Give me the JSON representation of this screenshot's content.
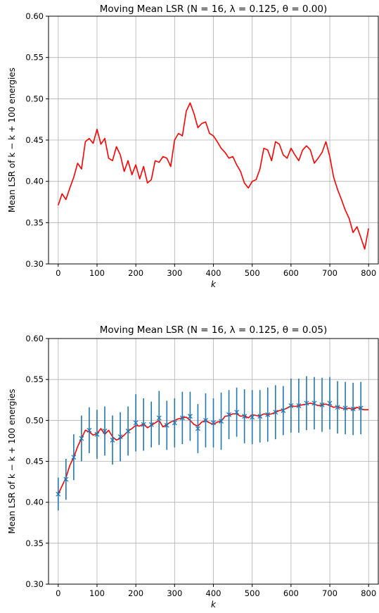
{
  "chart_data": [
    {
      "type": "line",
      "title": "Moving Mean LSR (N = 16, λ = 0.125, θ = 0.00)",
      "xlabel": "k",
      "ylabel": "Mean LSR of k − k + 100 energies",
      "xlim": [
        -25,
        825
      ],
      "ylim": [
        0.3,
        0.6
      ],
      "xticks": [
        0,
        100,
        200,
        300,
        400,
        500,
        600,
        700,
        800
      ],
      "yticks": [
        "0.30",
        "0.35",
        "0.40",
        "0.45",
        "0.50",
        "0.55",
        "0.60"
      ],
      "grid": true,
      "series": [
        {
          "color": "#ff0000",
          "x": [
            0,
            10,
            20,
            30,
            40,
            50,
            60,
            70,
            80,
            90,
            100,
            110,
            120,
            130,
            140,
            150,
            160,
            170,
            180,
            190,
            200,
            210,
            220,
            230,
            240,
            250,
            260,
            270,
            280,
            290,
            300,
            310,
            320,
            330,
            340,
            350,
            360,
            370,
            380,
            390,
            400,
            410,
            420,
            430,
            440,
            450,
            460,
            470,
            480,
            490,
            500,
            510,
            520,
            530,
            540,
            550,
            560,
            570,
            580,
            590,
            600,
            610,
            620,
            630,
            640,
            650,
            660,
            670,
            680,
            690,
            700,
            710,
            720,
            730,
            740,
            750,
            760,
            770,
            780,
            790,
            800
          ],
          "y": [
            0.371,
            0.385,
            0.378,
            0.392,
            0.405,
            0.422,
            0.415,
            0.448,
            0.452,
            0.446,
            0.463,
            0.445,
            0.452,
            0.428,
            0.425,
            0.442,
            0.432,
            0.412,
            0.425,
            0.408,
            0.42,
            0.403,
            0.418,
            0.398,
            0.402,
            0.425,
            0.423,
            0.43,
            0.428,
            0.418,
            0.45,
            0.458,
            0.455,
            0.485,
            0.495,
            0.482,
            0.465,
            0.47,
            0.472,
            0.458,
            0.455,
            0.448,
            0.44,
            0.435,
            0.428,
            0.43,
            0.42,
            0.412,
            0.398,
            0.392,
            0.4,
            0.402,
            0.415,
            0.44,
            0.438,
            0.425,
            0.448,
            0.445,
            0.432,
            0.428,
            0.44,
            0.432,
            0.425,
            0.438,
            0.443,
            0.438,
            0.422,
            0.428,
            0.435,
            0.448,
            0.43,
            0.405,
            0.39,
            0.378,
            0.365,
            0.355,
            0.338,
            0.345,
            0.332,
            0.318,
            0.343
          ]
        }
      ]
    },
    {
      "type": "line",
      "title": "Moving Mean LSR (N = 16, λ = 0.125, θ = 0.05)",
      "xlabel": "k",
      "ylabel": "Mean LSR of k − k + 100 energies",
      "xlim": [
        -25,
        825
      ],
      "ylim": [
        0.3,
        0.6
      ],
      "xticks": [
        0,
        100,
        200,
        300,
        400,
        500,
        600,
        700,
        800
      ],
      "yticks": [
        "0.30",
        "0.35",
        "0.40",
        "0.45",
        "0.50",
        "0.55",
        "0.60"
      ],
      "grid": true,
      "series": [
        {
          "color": "#ff0000",
          "x": [
            0,
            10,
            20,
            30,
            40,
            50,
            60,
            70,
            80,
            90,
            100,
            110,
            120,
            130,
            140,
            150,
            160,
            170,
            180,
            190,
            200,
            210,
            220,
            230,
            240,
            250,
            260,
            270,
            280,
            290,
            300,
            310,
            320,
            330,
            340,
            350,
            360,
            370,
            380,
            390,
            400,
            410,
            420,
            430,
            440,
            450,
            460,
            470,
            480,
            490,
            500,
            510,
            520,
            530,
            540,
            550,
            560,
            570,
            580,
            590,
            600,
            610,
            620,
            630,
            640,
            650,
            660,
            670,
            680,
            690,
            700,
            710,
            720,
            730,
            740,
            750,
            760,
            770,
            780,
            790,
            800
          ],
          "y": [
            0.41,
            0.42,
            0.43,
            0.445,
            0.455,
            0.468,
            0.478,
            0.488,
            0.486,
            0.482,
            0.484,
            0.49,
            0.483,
            0.488,
            0.48,
            0.476,
            0.478,
            0.482,
            0.487,
            0.49,
            0.494,
            0.493,
            0.496,
            0.491,
            0.494,
            0.497,
            0.5,
            0.492,
            0.495,
            0.498,
            0.5,
            0.502,
            0.503,
            0.504,
            0.5,
            0.495,
            0.493,
            0.498,
            0.5,
            0.497,
            0.495,
            0.498,
            0.499,
            0.505,
            0.506,
            0.508,
            0.508,
            0.505,
            0.506,
            0.503,
            0.507,
            0.506,
            0.505,
            0.508,
            0.507,
            0.508,
            0.51,
            0.512,
            0.513,
            0.515,
            0.518,
            0.517,
            0.518,
            0.519,
            0.52,
            0.521,
            0.52,
            0.518,
            0.519,
            0.52,
            0.518,
            0.516,
            0.517,
            0.515,
            0.514,
            0.515,
            0.513,
            0.516,
            0.514,
            0.513,
            0.513
          ]
        },
        {
          "color": "#1f77b4",
          "marker": "x",
          "x": [
            0,
            20,
            40,
            60,
            80,
            100,
            120,
            140,
            160,
            180,
            200,
            220,
            240,
            260,
            280,
            300,
            320,
            340,
            360,
            380,
            400,
            420,
            440,
            460,
            480,
            500,
            520,
            540,
            560,
            580,
            600,
            620,
            640,
            660,
            680,
            700,
            720,
            740,
            760,
            780
          ],
          "y": [
            0.41,
            0.428,
            0.455,
            0.478,
            0.488,
            0.483,
            0.487,
            0.476,
            0.48,
            0.487,
            0.497,
            0.495,
            0.495,
            0.503,
            0.494,
            0.497,
            0.503,
            0.505,
            0.49,
            0.5,
            0.497,
            0.499,
            0.507,
            0.51,
            0.505,
            0.504,
            0.505,
            0.507,
            0.51,
            0.512,
            0.518,
            0.518,
            0.521,
            0.521,
            0.519,
            0.521,
            0.516,
            0.515,
            0.514,
            0.515
          ],
          "err": [
            0.02,
            0.025,
            0.028,
            0.028,
            0.028,
            0.03,
            0.03,
            0.03,
            0.03,
            0.03,
            0.035,
            0.032,
            0.028,
            0.033,
            0.03,
            0.03,
            0.032,
            0.03,
            0.03,
            0.033,
            0.03,
            0.035,
            0.03,
            0.03,
            0.033,
            0.033,
            0.032,
            0.033,
            0.033,
            0.03,
            0.033,
            0.033,
            0.033,
            0.032,
            0.033,
            0.032,
            0.032,
            0.032,
            0.032,
            0.032
          ]
        }
      ]
    }
  ]
}
